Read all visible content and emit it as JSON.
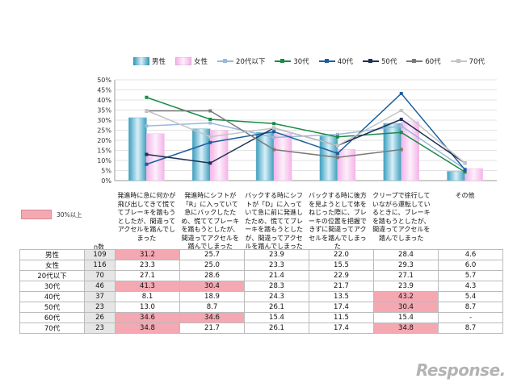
{
  "chart_data": {
    "type": "bar+line",
    "ylim": [
      0,
      50
    ],
    "yticks": [
      "0%",
      "5%",
      "10%",
      "15%",
      "20%",
      "25%",
      "30%",
      "35%",
      "40%",
      "45%",
      "50%"
    ],
    "categories": [
      "発進時に急に何かが飛び出してきて慌ててブレーキを踏もうとしたが、間違ってアクセルを踏んでしまった",
      "発進時にシフトが「R」に入っていて急にバックしたため、慌ててブレーキを踏もうとしたが、間違ってアクセルを踏んでしまった",
      "バックする時にシフトが「D」に入っていて急に前に発進したため、慌ててブレーキを踏もうとしたが、間違ってアクセルを踏んでしまった",
      "バックする時に後方を見ようとして体をねじった際に、ブレーキの位置を把握できずに間違ってアクセルを踏んでしまった",
      "クリープで徐行していながら運転しているときに、ブレーキを踏もうとしたが、間違ってアクセルを踏んでしまった",
      "その他"
    ],
    "series": [
      {
        "name": "男性",
        "kind": "bar",
        "color": "#5fb6d0",
        "n": "109",
        "values": [
          31.2,
          25.7,
          23.9,
          22.0,
          28.4,
          4.6
        ]
      },
      {
        "name": "女性",
        "kind": "bar",
        "color": "#f9c6ee",
        "n": "116",
        "values": [
          23.3,
          25.0,
          23.3,
          15.5,
          29.3,
          6.0
        ]
      },
      {
        "name": "20代以下",
        "kind": "line",
        "color": "#9bb7dc",
        "n": "70",
        "values": [
          27.1,
          28.6,
          21.4,
          22.9,
          27.1,
          5.7
        ]
      },
      {
        "name": "30代",
        "kind": "line",
        "color": "#1a8a46",
        "n": "46",
        "values": [
          41.3,
          30.4,
          28.3,
          21.7,
          23.9,
          4.3
        ]
      },
      {
        "name": "40代",
        "kind": "line",
        "color": "#1b5f9e",
        "n": "37",
        "values": [
          8.1,
          18.9,
          24.3,
          13.5,
          43.2,
          5.4
        ]
      },
      {
        "name": "50代",
        "kind": "line",
        "color": "#1f2f55",
        "n": "23",
        "values": [
          13.0,
          8.7,
          26.1,
          17.4,
          30.4,
          8.7
        ]
      },
      {
        "name": "60代",
        "kind": "line",
        "color": "#7a7a7a",
        "n": "26",
        "values": [
          34.6,
          34.6,
          15.4,
          11.5,
          15.4,
          null
        ]
      },
      {
        "name": "70代",
        "kind": "line",
        "color": "#c4c4c4",
        "n": "23",
        "values": [
          34.8,
          21.7,
          26.1,
          17.4,
          34.8,
          8.7
        ]
      }
    ],
    "table": {
      "n_header": "n数",
      "highlight_threshold": 30,
      "highlight_note": "30%以上",
      "rows": [
        {
          "label": "男性",
          "n": "109",
          "cells": [
            "31.2",
            "25.7",
            "23.9",
            "22.0",
            "28.4",
            "4.6"
          ]
        },
        {
          "label": "女性",
          "n": "116",
          "cells": [
            "23.3",
            "25.0",
            "23.3",
            "15.5",
            "29.3",
            "6.0"
          ]
        },
        {
          "label": "20代以下",
          "n": "70",
          "cells": [
            "27.1",
            "28.6",
            "21.4",
            "22.9",
            "27.1",
            "5.7"
          ]
        },
        {
          "label": "30代",
          "n": "46",
          "cells": [
            "41.3",
            "30.4",
            "28.3",
            "21.7",
            "23.9",
            "4.3"
          ]
        },
        {
          "label": "40代",
          "n": "37",
          "cells": [
            "8.1",
            "18.9",
            "24.3",
            "13.5",
            "43.2",
            "5.4"
          ]
        },
        {
          "label": "50代",
          "n": "23",
          "cells": [
            "13.0",
            "8.7",
            "26.1",
            "17.4",
            "30.4",
            "8.7"
          ]
        },
        {
          "label": "60代",
          "n": "26",
          "cells": [
            "34.6",
            "34.6",
            "15.4",
            "11.5",
            "15.4",
            "-"
          ]
        },
        {
          "label": "70代",
          "n": "23",
          "cells": [
            "34.8",
            "21.7",
            "26.1",
            "17.4",
            "34.8",
            "8.7"
          ]
        }
      ]
    }
  },
  "watermark": "Response."
}
